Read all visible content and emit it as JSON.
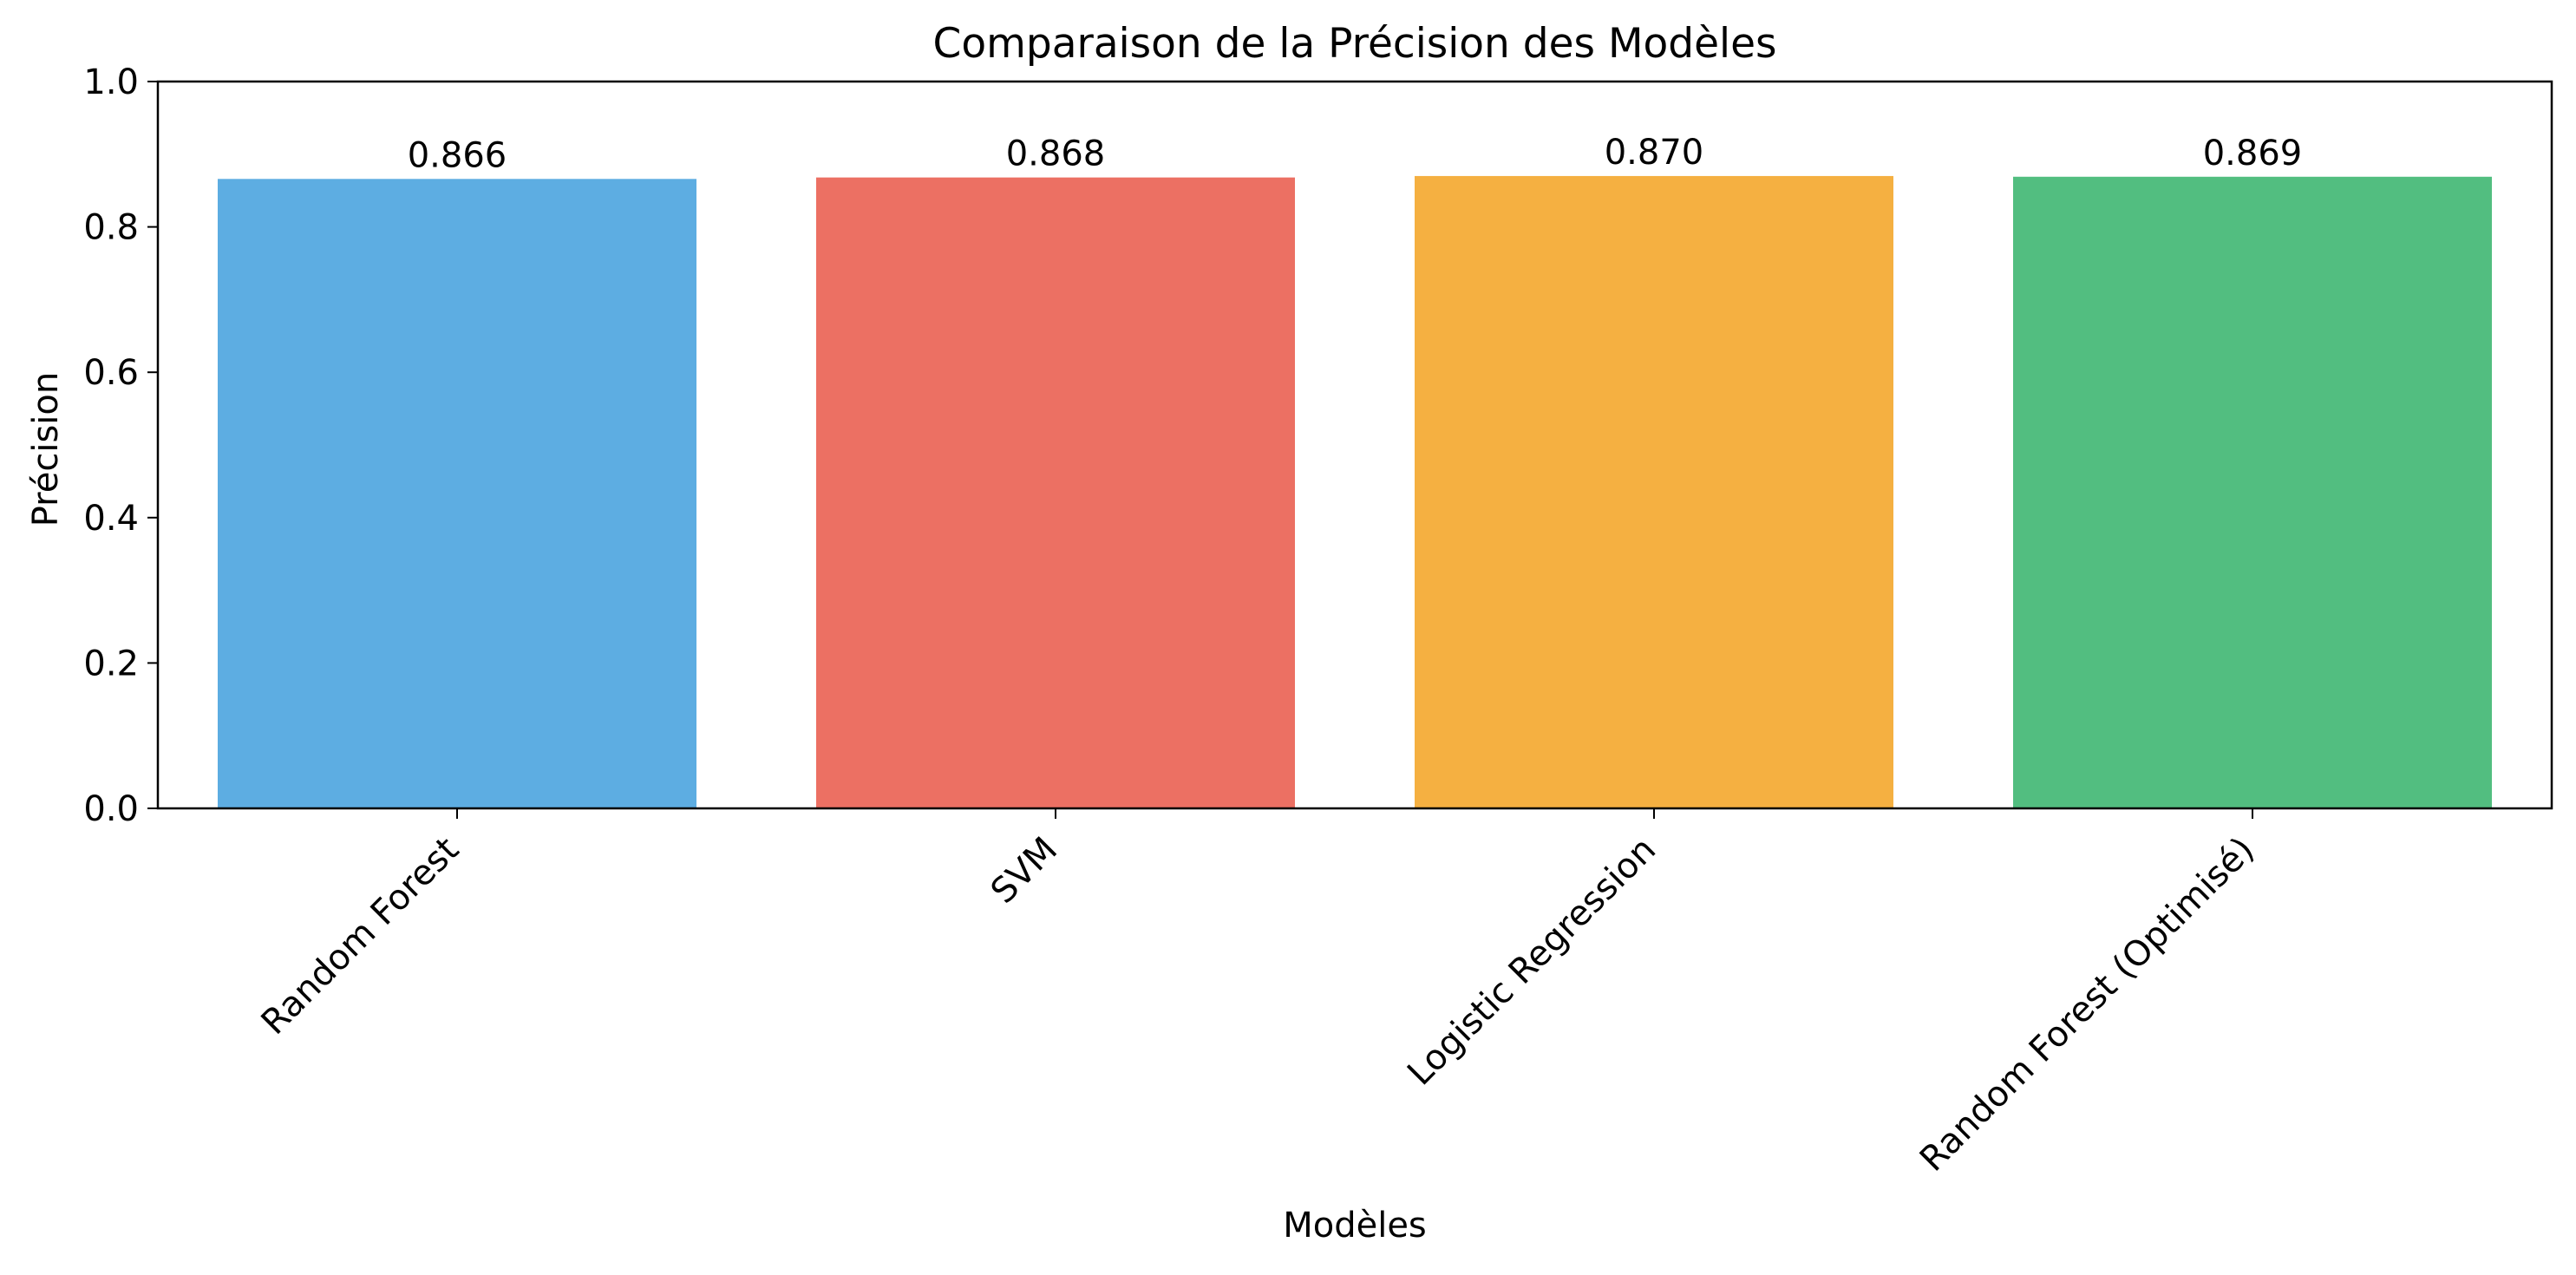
{
  "chart_data": {
    "type": "bar",
    "title": "Comparaison de la Précision des Modèles",
    "xlabel": "Modèles",
    "ylabel": "Précision",
    "categories": [
      "Random Forest",
      "SVM",
      "Logistic Regression",
      "Random Forest (Optimisé)"
    ],
    "values": [
      0.866,
      0.868,
      0.87,
      0.869
    ],
    "value_labels": [
      "0.866",
      "0.868",
      "0.870",
      "0.869"
    ],
    "colors": [
      "#5DADE2",
      "#EC7063",
      "#F5B041",
      "#52BE80"
    ],
    "ylim": [
      0,
      1.0
    ],
    "yticks": [
      0.0,
      0.2,
      0.4,
      0.6,
      0.8,
      1.0
    ],
    "ytick_labels": [
      "0.0",
      "0.2",
      "0.4",
      "0.6",
      "0.8",
      "1.0"
    ],
    "xtick_rotation": 45,
    "grid": false,
    "legend": "none"
  }
}
